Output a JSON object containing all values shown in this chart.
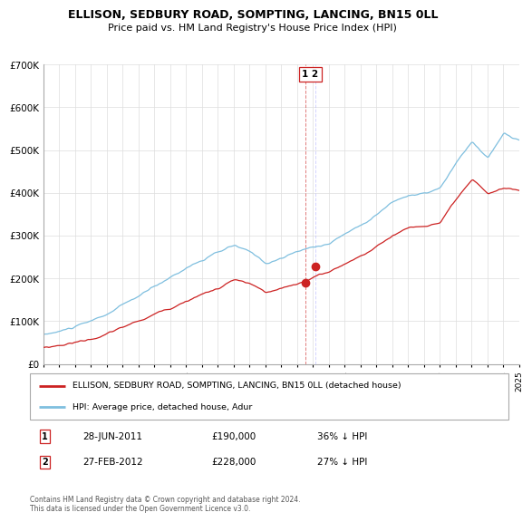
{
  "title": "ELLISON, SEDBURY ROAD, SOMPTING, LANCING, BN15 0LL",
  "subtitle": "Price paid vs. HM Land Registry's House Price Index (HPI)",
  "legend_line1": "ELLISON, SEDBURY ROAD, SOMPTING, LANCING, BN15 0LL (detached house)",
  "legend_line2": "HPI: Average price, detached house, Adur",
  "footnote": "Contains HM Land Registry data © Crown copyright and database right 2024.\nThis data is licensed under the Open Government Licence v3.0.",
  "transaction1_date": "28-JUN-2011",
  "transaction1_price": "£190,000",
  "transaction1_hpi": "36% ↓ HPI",
  "transaction2_date": "27-FEB-2012",
  "transaction2_price": "£228,000",
  "transaction2_hpi": "27% ↓ HPI",
  "hpi_color": "#7fbfdf",
  "price_color": "#cc2222",
  "vline_color": "#cc2222",
  "marker_color": "#cc2222",
  "ylim": [
    0,
    700000
  ],
  "yticks": [
    0,
    100000,
    200000,
    300000,
    400000,
    500000,
    600000,
    700000
  ],
  "transaction1_x": 2011.5,
  "transaction1_y": 190000,
  "transaction2_x": 2012.17,
  "transaction2_y": 228000,
  "xmin": 1995,
  "xmax": 2025
}
